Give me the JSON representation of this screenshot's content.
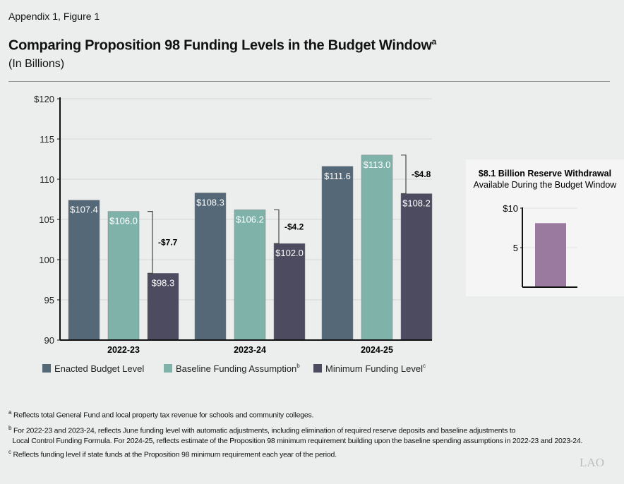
{
  "figure_label": "Appendix 1, Figure 1",
  "title": "Comparing Proposition 98 Funding Levels in the Budget Window",
  "title_footnote": "a",
  "subtitle": "(In Billions)",
  "chart_data": [
    {
      "type": "bar",
      "categories": [
        "2022-23",
        "2023-24",
        "2024-25"
      ],
      "series": [
        {
          "name": "Enacted Budget Level",
          "values": [
            107.4,
            108.3,
            111.6
          ],
          "labels": [
            "$107.4",
            "$108.3",
            "$111.6"
          ],
          "color": "#546878"
        },
        {
          "name": "Baseline Funding Assumption",
          "footnote": "b",
          "values": [
            106.0,
            106.2,
            113.0
          ],
          "labels": [
            "$106.0",
            "$106.2",
            "$113.0"
          ],
          "color": "#7fb3aa"
        },
        {
          "name": "Minimum Funding Level",
          "footnote": "c",
          "values": [
            98.3,
            102.0,
            108.2
          ],
          "labels": [
            "$98.3",
            "$102.0",
            "$108.2"
          ],
          "color": "#4c4b60"
        }
      ],
      "differences": [
        "-$7.7",
        "-$4.2",
        "-$4.8"
      ],
      "ylim": [
        90,
        120
      ],
      "yticks": [
        90,
        95,
        100,
        105,
        110,
        115,
        120
      ],
      "ytick_labels": [
        "90",
        "95",
        "100",
        "105",
        "110",
        "115",
        "$120"
      ],
      "grid": true,
      "legend_placement": "bottom"
    },
    {
      "type": "bar",
      "title": "$8.1 Billion Reserve Withdrawal",
      "subtitle": "Available During the Budget Window",
      "categories": [
        ""
      ],
      "values": [
        8.1
      ],
      "color": "#9b7a9f",
      "ylim": [
        0,
        10
      ],
      "yticks": [
        5,
        10
      ],
      "ytick_labels": [
        "5",
        "$10"
      ],
      "grid": true
    }
  ],
  "footnotes": [
    {
      "mark": "a",
      "text": "Reflects total General Fund and local property tax revenue for schools and community colleges."
    },
    {
      "mark": "b",
      "text": "For 2022-23 and 2023-24, reflects June funding level with automatic adjustments, including elimination of required reserve deposits and baseline adjustments to",
      "text2": "Local Control Funding Formula. For 2024-25, reflects estimate of the Proposition 98 minimum requirement building upon the baseline spending assumptions in 2022-23 and 2023-24."
    },
    {
      "mark": "c",
      "text": "Reflects funding level if state funds at the Proposition 98 minimum requirement each year of the period."
    }
  ],
  "logo": "LAO"
}
